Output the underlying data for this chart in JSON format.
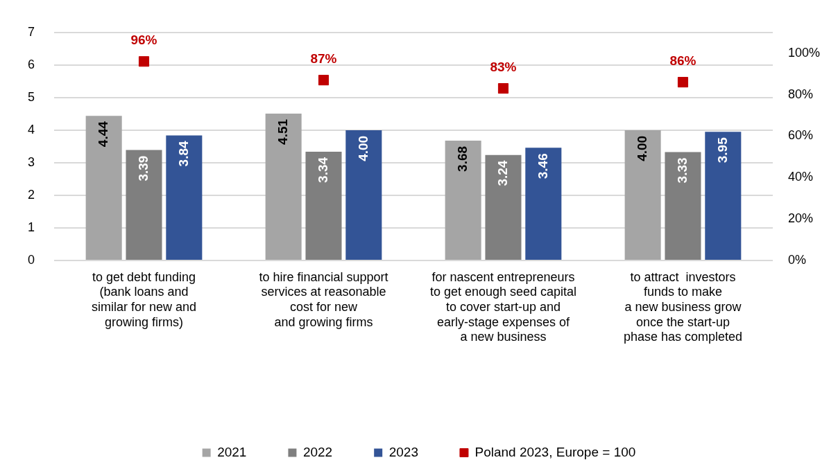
{
  "chart_data": {
    "type": "bar",
    "categories": [
      "to get debt funding\n(bank loans and\nsimilar for new and\ngrowing firms)",
      "to hire financial support\nservices at reasonable\ncost for new\nand growing firms",
      "for nascent entrepreneurs\nto get enough seed capital\nto cover start-up and\nearly-stage expenses of\na new business",
      "to attract  investors\nfunds to make\na new business grow\nonce the start-up\nphase has completed"
    ],
    "series": [
      {
        "name": "2021",
        "color": "#a5a5a5",
        "values": [
          4.44,
          4.51,
          3.68,
          4.0
        ],
        "value_labels": [
          "4.44",
          "4.51",
          "3.68",
          "4.00"
        ]
      },
      {
        "name": "2022",
        "color": "#7f7f7f",
        "values": [
          3.39,
          3.34,
          3.24,
          3.33
        ],
        "value_labels": [
          "3.39",
          "3.34",
          "3.24",
          "3.33"
        ]
      },
      {
        "name": "2023",
        "color": "#335496",
        "values": [
          3.84,
          4.0,
          3.46,
          3.95
        ],
        "value_labels": [
          "3.84",
          "4.00",
          "3.46",
          "3.95"
        ]
      },
      {
        "name": "Poland 2023, Europe = 100",
        "type": "scatter",
        "axis": "y2",
        "color": "#c00000",
        "marker": "square",
        "values": [
          96,
          87,
          83,
          86
        ],
        "value_labels": [
          "96%",
          "87%",
          "83%",
          "86%"
        ]
      }
    ],
    "ylim": [
      0,
      7
    ],
    "yticks": [
      0,
      1,
      2,
      3,
      4,
      5,
      6,
      7
    ],
    "y2lim": [
      0,
      110
    ],
    "y2ticks": [
      {
        "value": 0,
        "label": "0%"
      },
      {
        "value": 20,
        "label": "20%"
      },
      {
        "value": 40,
        "label": "40%"
      },
      {
        "value": 60,
        "label": "60%"
      },
      {
        "value": 80,
        "label": "80%"
      },
      {
        "value": 100,
        "label": "100%"
      }
    ],
    "grid": "y",
    "legend": "bottom"
  }
}
